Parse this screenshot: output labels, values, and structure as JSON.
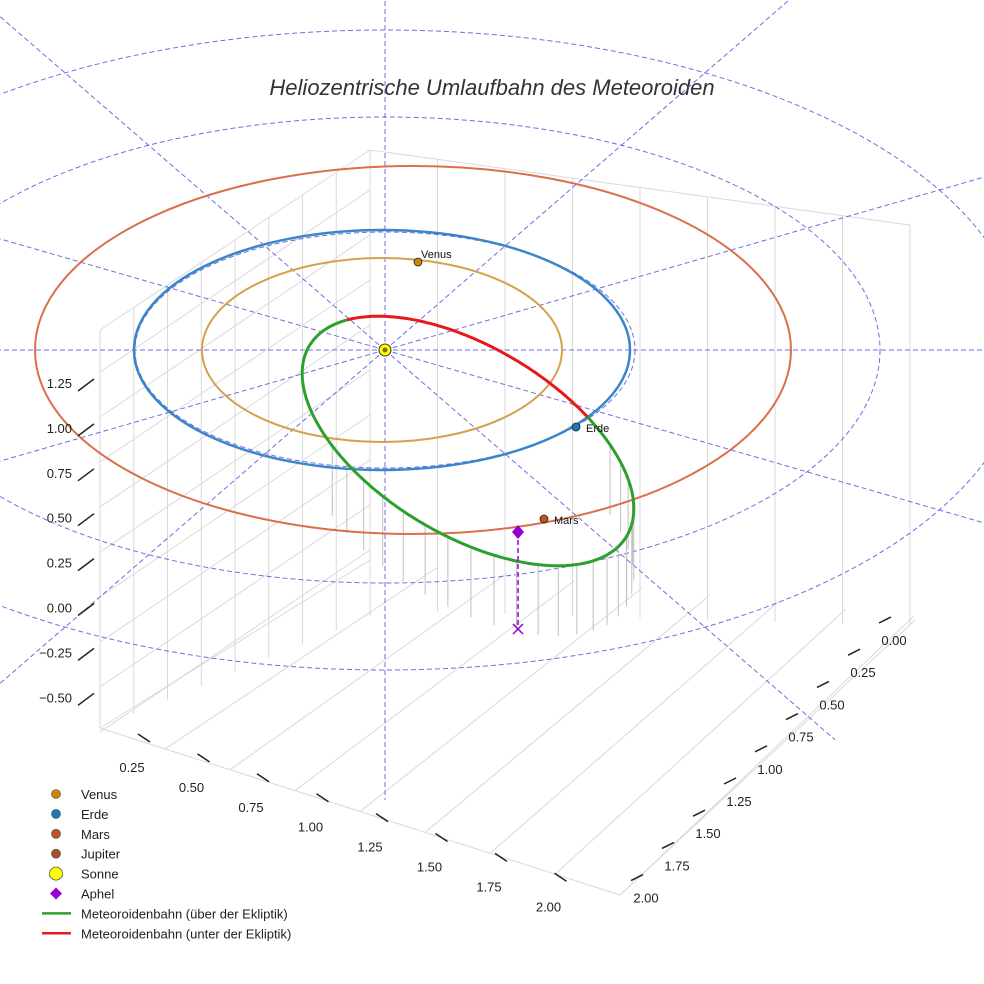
{
  "chart_data": {
    "type": "3d-scatter-line",
    "title": "Heliozentrische Umlaufbahn des Meteoroiden",
    "z_axis_ticks": [
      "1.25",
      "1.00",
      "0.75",
      "0.50",
      "0.25",
      "0.00",
      "−0.25",
      "−0.50"
    ],
    "x_axis_ticks": [
      "0.25",
      "0.50",
      "0.75",
      "1.00",
      "1.25",
      "1.50",
      "1.75",
      "2.00"
    ],
    "y_axis_ticks": [
      "0.00",
      "0.25",
      "0.50",
      "0.75",
      "1.00",
      "1.25",
      "1.50",
      "1.75",
      "2.00"
    ],
    "planets": [
      {
        "name": "Venus",
        "orbit_radius_au": 0.72,
        "color": "#c8860a",
        "orbit_color": "#d4a24c"
      },
      {
        "name": "Erde",
        "orbit_radius_au": 1.0,
        "color": "#1f77b4",
        "orbit_color": "#3a86c8"
      },
      {
        "name": "Mars",
        "orbit_radius_au": 1.52,
        "color": "#c0521b",
        "orbit_color": "#d9704a"
      }
    ],
    "point_labels": [
      "Venus",
      "Erde",
      "Mars"
    ],
    "legend": [
      {
        "label": "Venus",
        "kind": "dot",
        "color": "#c8860a"
      },
      {
        "label": "Erde",
        "kind": "dot",
        "color": "#1f77b4"
      },
      {
        "label": "Mars",
        "kind": "dot",
        "color": "#c0521b"
      },
      {
        "label": "Jupiter",
        "kind": "dot",
        "color": "#a0522d"
      },
      {
        "label": "Sonne",
        "kind": "sun",
        "color": "#ffff00"
      },
      {
        "label": "Aphel",
        "kind": "diamond",
        "color": "#9400d3"
      },
      {
        "label": "Meteoroidenbahn (über der Ekliptik)",
        "kind": "line",
        "color": "#2ca02c"
      },
      {
        "label": "Meteoroidenbahn (unter der Ekliptik)",
        "kind": "line",
        "color": "#e8191a"
      }
    ],
    "colors": {
      "grid": "#d9d9d9",
      "ecliptic_grid": "#5555dd",
      "meteoroid_above": "#2ca02c",
      "meteoroid_below": "#e8191a",
      "aphel": "#9400d3",
      "sun": "#ffff00",
      "jupiter_legend": "#a0522d"
    }
  }
}
